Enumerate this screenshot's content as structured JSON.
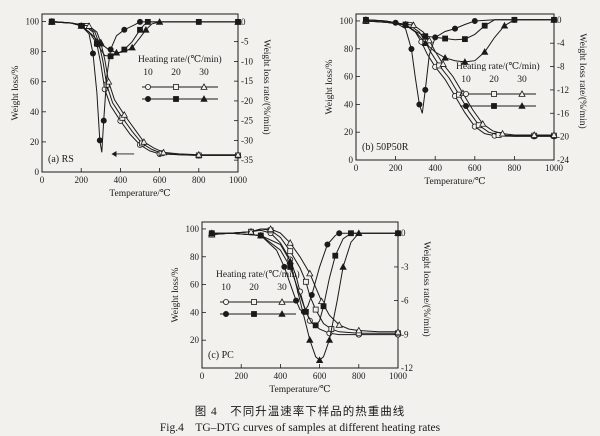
{
  "caption": {
    "cn": "图 4　不同升温速率下样品的热重曲线",
    "en": "Fig.4　TG–DTG curves of samples at different heating rates"
  },
  "colors": {
    "ink": "#1a1a1a",
    "background": "#f2f1ed"
  },
  "legend_title": "Heating rate/(℃/min)",
  "legend_rates": [
    "10",
    "20",
    "30"
  ],
  "chart_data": [
    {
      "type": "line",
      "panel_label": "(a) RS",
      "xlabel": "Temperature/℃",
      "ylabel": "Weight loss/%",
      "y2label": "Weight loss rate/(%/min)",
      "xlim": [
        0,
        1000
      ],
      "ylim": [
        0,
        105
      ],
      "y2lim": [
        -38,
        2
      ],
      "xticks": [
        "0",
        "200",
        "400",
        "600",
        "800",
        "1000"
      ],
      "yticks": [
        "0",
        "20",
        "40",
        "60",
        "80",
        "100"
      ],
      "y2ticks": [
        "0",
        "-5",
        "-10",
        "-15",
        "-20",
        "-25",
        "-30",
        "-35"
      ],
      "tg_series": [
        {
          "name": "10",
          "marker": "open-circle",
          "x": [
            50,
            150,
            220,
            260,
            280,
            300,
            320,
            350,
            400,
            450,
            500,
            550,
            600,
            700,
            800,
            900,
            1000
          ],
          "y": [
            100,
            99,
            97,
            93,
            85,
            72,
            55,
            44,
            34,
            25,
            18,
            14,
            12,
            11.5,
            11,
            11,
            11
          ]
        },
        {
          "name": "20",
          "marker": "open-square",
          "x": [
            50,
            150,
            230,
            270,
            290,
            310,
            330,
            360,
            410,
            460,
            510,
            560,
            610,
            700,
            800,
            900,
            1000
          ],
          "y": [
            100,
            99,
            97,
            93,
            86,
            74,
            58,
            46,
            36,
            27,
            19,
            15,
            12.5,
            11.5,
            11,
            11,
            11
          ]
        },
        {
          "name": "30",
          "marker": "open-triangle",
          "x": [
            50,
            150,
            240,
            280,
            300,
            320,
            340,
            370,
            420,
            470,
            520,
            570,
            620,
            700,
            800,
            900,
            1000
          ],
          "y": [
            100,
            99,
            97,
            93,
            86,
            75,
            60,
            48,
            38,
            29,
            20,
            16,
            13,
            12,
            11.5,
            11.5,
            11.5
          ]
        }
      ],
      "dtg_series": [
        {
          "name": "10",
          "marker": "filled-circle",
          "x": [
            50,
            150,
            200,
            240,
            260,
            280,
            295,
            305,
            315,
            330,
            350,
            380,
            420,
            470,
            500,
            600,
            800,
            1000
          ],
          "y": [
            0,
            -0.3,
            -1,
            -3,
            -8,
            -18,
            -30,
            -33,
            -25,
            -14,
            -7,
            -3.5,
            -2,
            -0.8,
            0,
            0,
            0,
            0
          ]
        },
        {
          "name": "20",
          "marker": "filled-square",
          "x": [
            50,
            150,
            200,
            240,
            280,
            320,
            350,
            380,
            420,
            460,
            500,
            520,
            540,
            600,
            800,
            1000
          ],
          "y": [
            0,
            -0.3,
            -1,
            -2.5,
            -5.5,
            -8.5,
            -8.7,
            -8.2,
            -7,
            -5,
            -2,
            -0.8,
            0,
            0,
            0,
            0
          ]
        },
        {
          "name": "30",
          "marker": "filled-triangle",
          "x": [
            50,
            150,
            200,
            250,
            300,
            340,
            380,
            420,
            460,
            500,
            530,
            560,
            600,
            800,
            1000
          ],
          "y": [
            0,
            -0.3,
            -1,
            -3,
            -5.5,
            -7,
            -7.8,
            -7.6,
            -6.5,
            -4,
            -2,
            -0.5,
            0,
            0,
            0
          ]
        }
      ]
    },
    {
      "type": "line",
      "panel_label": "(b) 50P50R",
      "xlabel": "Temperature/℃",
      "ylabel": "Weight loss/%",
      "y2label": "Weight loss rate/(%/min)",
      "xlim": [
        0,
        1000
      ],
      "ylim": [
        0,
        105
      ],
      "y2lim": [
        -24,
        1
      ],
      "xticks": [
        "0",
        "200",
        "400",
        "600",
        "800",
        "1000"
      ],
      "yticks": [
        "0",
        "20",
        "40",
        "60",
        "80",
        "100"
      ],
      "y2ticks": [
        "0",
        "-4",
        "-8",
        "-12",
        "-16",
        "-20",
        "-24"
      ],
      "tg_series": [
        {
          "name": "10",
          "marker": "open-circle",
          "x": [
            50,
            150,
            250,
            300,
            330,
            360,
            400,
            450,
            500,
            550,
            600,
            650,
            700,
            800,
            900,
            1000
          ],
          "y": [
            100,
            99,
            97,
            92,
            85,
            76,
            67,
            58,
            46,
            34,
            24,
            19,
            17.5,
            17,
            17,
            17
          ]
        },
        {
          "name": "20",
          "marker": "open-square",
          "x": [
            50,
            150,
            270,
            320,
            350,
            380,
            420,
            470,
            520,
            570,
            620,
            670,
            720,
            800,
            900,
            1000
          ],
          "y": [
            100,
            99,
            97,
            92,
            85,
            77,
            68,
            59,
            47,
            35,
            25,
            20,
            18,
            17.5,
            17.5,
            17.5
          ]
        },
        {
          "name": "30",
          "marker": "open-triangle",
          "x": [
            50,
            150,
            290,
            340,
            370,
            400,
            440,
            490,
            540,
            590,
            640,
            690,
            740,
            800,
            900,
            1000
          ],
          "y": [
            100,
            99,
            97,
            92,
            86,
            78,
            69,
            60,
            48,
            36,
            26,
            21,
            19,
            18,
            18,
            18
          ]
        }
      ],
      "dtg_series": [
        {
          "name": "10",
          "marker": "filled-circle",
          "x": [
            50,
            150,
            200,
            250,
            280,
            300,
            320,
            335,
            350,
            370,
            400,
            450,
            500,
            550,
            600,
            700,
            800,
            1000
          ],
          "y": [
            0,
            -0.2,
            -0.5,
            -1.5,
            -5,
            -10,
            -14.5,
            -16,
            -12,
            -6,
            -3,
            -2,
            -1.5,
            -0.8,
            -0.2,
            0,
            0,
            0
          ]
        },
        {
          "name": "20",
          "marker": "filled-square",
          "x": [
            50,
            150,
            250,
            300,
            350,
            400,
            450,
            500,
            550,
            600,
            650,
            700,
            800,
            1000
          ],
          "y": [
            0,
            -0.2,
            -0.8,
            -2,
            -2.8,
            -3,
            -3.2,
            -3.4,
            -3.3,
            -2.5,
            -1,
            0,
            0,
            0
          ]
        },
        {
          "name": "30",
          "marker": "filled-triangle",
          "x": [
            50,
            150,
            250,
            300,
            350,
            400,
            450,
            500,
            550,
            600,
            650,
            700,
            750,
            800,
            1000
          ],
          "y": [
            0,
            -0.2,
            -0.8,
            -2,
            -4,
            -5.5,
            -6.5,
            -7,
            -7.2,
            -7,
            -5.5,
            -3,
            -1,
            0,
            0
          ]
        }
      ]
    },
    {
      "type": "line",
      "panel_label": "(c) PC",
      "xlabel": "Temperature/℃",
      "ylabel": "Weight loss/%",
      "y2label": "Weight loss rate/(%/min)",
      "xlim": [
        0,
        1000
      ],
      "ylim": [
        0,
        105
      ],
      "y2lim": [
        -12,
        1
      ],
      "xticks": [
        "0",
        "200",
        "400",
        "600",
        "800",
        "1000"
      ],
      "yticks": [
        "20",
        "40",
        "60",
        "80",
        "100"
      ],
      "y2ticks": [
        "0",
        "-3",
        "-6",
        "-9",
        "-12"
      ],
      "tg_series": [
        {
          "name": "10",
          "marker": "open-circle",
          "x": [
            50,
            150,
            250,
            300,
            350,
            400,
            450,
            480,
            500,
            520,
            550,
            600,
            650,
            700,
            800,
            900,
            1000
          ],
          "y": [
            96,
            97,
            98,
            99,
            97,
            90,
            78,
            66,
            55,
            45,
            34,
            28,
            25,
            24,
            24,
            24,
            24
          ]
        },
        {
          "name": "20",
          "marker": "open-square",
          "x": [
            50,
            150,
            250,
            300,
            350,
            400,
            450,
            500,
            530,
            550,
            580,
            620,
            660,
            700,
            800,
            900,
            1000
          ],
          "y": [
            96,
            97,
            98,
            100,
            99,
            94,
            84,
            72,
            62,
            52,
            42,
            32,
            28,
            26,
            25,
            25,
            25
          ]
        },
        {
          "name": "30",
          "marker": "open-triangle",
          "x": [
            50,
            150,
            250,
            300,
            350,
            400,
            450,
            500,
            550,
            580,
            610,
            650,
            700,
            750,
            800,
            900,
            1000
          ],
          "y": [
            96,
            97,
            98,
            100,
            100,
            97,
            90,
            80,
            68,
            58,
            48,
            38,
            31,
            28,
            27,
            26,
            26
          ]
        }
      ],
      "dtg_series": [
        {
          "name": "10",
          "marker": "filled-circle",
          "x": [
            50,
            150,
            300,
            380,
            420,
            450,
            480,
            500,
            520,
            540,
            560,
            600,
            640,
            680,
            700,
            800,
            1000
          ],
          "y": [
            0,
            0,
            -0.2,
            -1.5,
            -3,
            -4.5,
            -6,
            -6.8,
            -7,
            -6.5,
            -5.5,
            -3,
            -1,
            -0.2,
            0,
            0,
            0
          ]
        },
        {
          "name": "20",
          "marker": "filled-square",
          "x": [
            50,
            150,
            300,
            400,
            450,
            500,
            530,
            560,
            580,
            600,
            620,
            650,
            680,
            720,
            760,
            800,
            1000
          ],
          "y": [
            0,
            0,
            -0.2,
            -1.5,
            -3,
            -5.5,
            -7,
            -8,
            -8.2,
            -7.8,
            -6.5,
            -4,
            -2,
            -0.5,
            0,
            0,
            0
          ]
        },
        {
          "name": "30",
          "marker": "filled-triangle",
          "x": [
            50,
            150,
            300,
            400,
            450,
            500,
            550,
            580,
            600,
            620,
            650,
            690,
            720,
            760,
            800,
            850,
            1000
          ],
          "y": [
            0,
            0,
            -0.2,
            -1,
            -2.5,
            -6,
            -9.5,
            -11,
            -11.3,
            -11,
            -9.5,
            -6,
            -3,
            -0.8,
            0,
            0,
            0
          ]
        }
      ]
    }
  ]
}
